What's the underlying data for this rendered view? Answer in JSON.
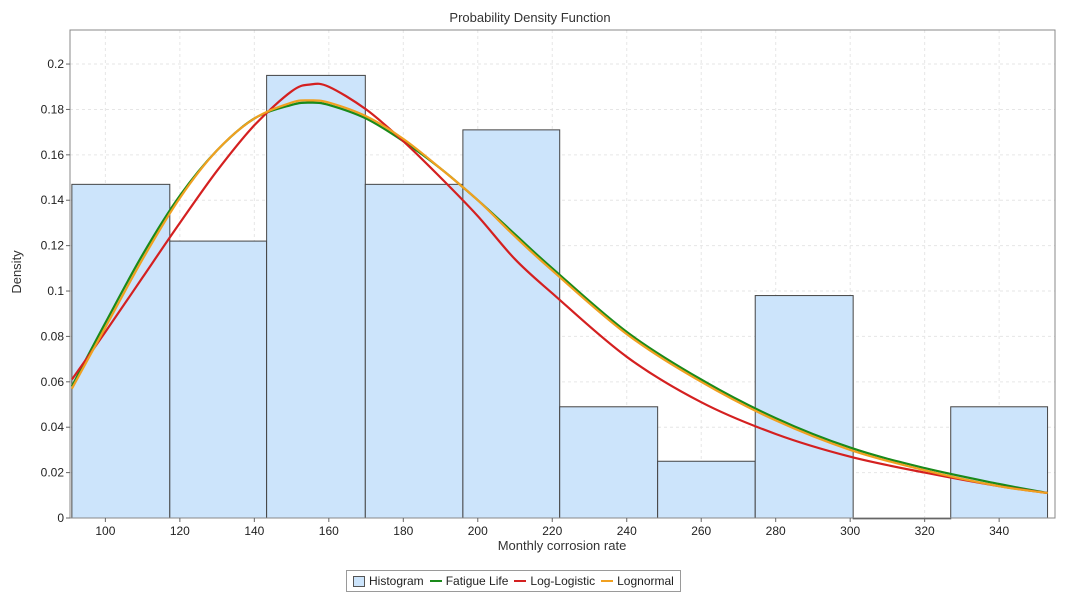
{
  "chart_data": {
    "type": "bar",
    "title": "Probability Density Function",
    "xlabel": "Monthly corrosion rate",
    "ylabel": "Density",
    "xlim": [
      90.5,
      355
    ],
    "ylim": [
      0,
      0.215
    ],
    "xticks": [
      100,
      120,
      140,
      160,
      180,
      200,
      220,
      240,
      260,
      280,
      300,
      320,
      340
    ],
    "yticks": [
      0,
      0.02,
      0.04,
      0.06,
      0.08,
      0.1,
      0.12,
      0.14,
      0.16,
      0.18,
      0.2
    ],
    "ytick_labels": [
      "0",
      "0.02",
      "0.04",
      "0.06",
      "0.08",
      "0.1",
      "0.12",
      "0.14",
      "0.16",
      "0.18",
      "0.2"
    ],
    "grid": true,
    "histogram": {
      "name": "Histogram",
      "color": "#cce4fb",
      "edge_color": "#444444",
      "bin_edges": [
        91.0,
        117.3,
        143.3,
        169.8,
        196.0,
        222.0,
        248.3,
        274.5,
        300.8,
        327.0,
        353.0
      ],
      "values": [
        0.147,
        0.122,
        0.195,
        0.147,
        0.171,
        0.049,
        0.025,
        0.098,
        0.0,
        0.049
      ]
    },
    "series": [
      {
        "name": "Fatigue Life",
        "color": "#1a8a1a",
        "x": [
          91,
          100,
          110,
          120,
          130,
          140,
          150,
          155,
          160,
          170,
          180,
          190,
          200,
          210,
          220,
          240,
          260,
          280,
          300,
          320,
          340,
          353
        ],
        "y": [
          0.058,
          0.086,
          0.116,
          0.142,
          0.162,
          0.176,
          0.182,
          0.183,
          0.182,
          0.176,
          0.166,
          0.154,
          0.14,
          0.125,
          0.11,
          0.082,
          0.061,
          0.044,
          0.031,
          0.022,
          0.015,
          0.011
        ]
      },
      {
        "name": "Log-Logistic",
        "color": "#d42020",
        "x": [
          91,
          100,
          110,
          120,
          130,
          140,
          150,
          155,
          160,
          170,
          180,
          190,
          200,
          210,
          220,
          240,
          260,
          280,
          300,
          320,
          340,
          353
        ],
        "y": [
          0.061,
          0.082,
          0.106,
          0.13,
          0.153,
          0.173,
          0.188,
          0.191,
          0.19,
          0.18,
          0.166,
          0.15,
          0.133,
          0.114,
          0.099,
          0.071,
          0.051,
          0.037,
          0.027,
          0.02,
          0.014,
          0.011
        ]
      },
      {
        "name": "Lognormal",
        "color": "#f0a020",
        "x": [
          91,
          100,
          110,
          120,
          130,
          140,
          150,
          155,
          160,
          170,
          180,
          190,
          200,
          210,
          220,
          240,
          260,
          280,
          300,
          320,
          340,
          353
        ],
        "y": [
          0.057,
          0.084,
          0.114,
          0.141,
          0.162,
          0.176,
          0.183,
          0.184,
          0.183,
          0.177,
          0.167,
          0.154,
          0.14,
          0.124,
          0.109,
          0.081,
          0.06,
          0.043,
          0.03,
          0.021,
          0.014,
          0.011
        ]
      }
    ],
    "legend_position": "bottom-center"
  }
}
